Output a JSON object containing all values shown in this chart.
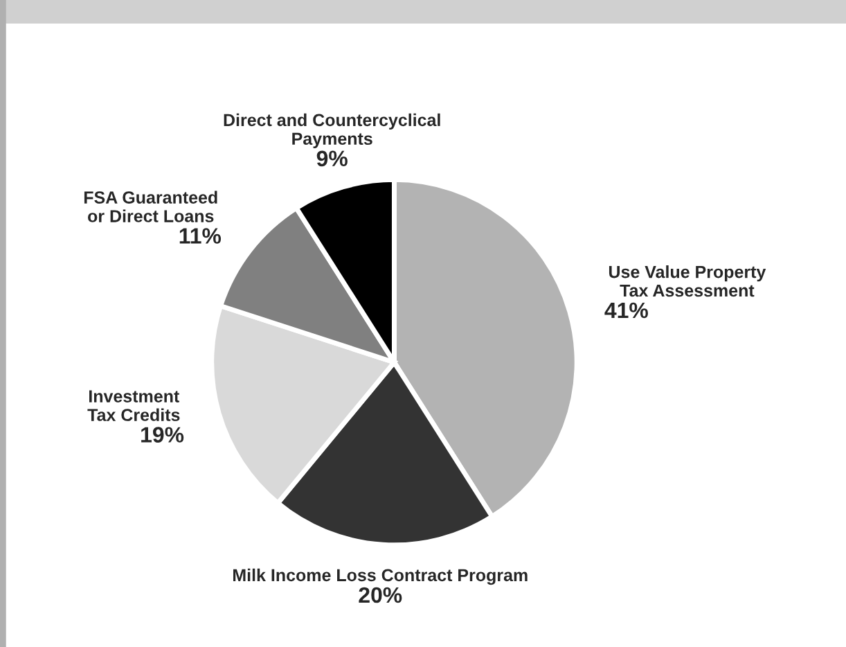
{
  "chart_data": {
    "type": "pie",
    "categories": [
      "Use Value Property\nTax Assessment",
      "Milk Income Loss Contract Program",
      "Investment\nTax Credits",
      "FSA Guaranteed\nor Direct Loans",
      "Direct and Countercyclical\nPayments"
    ],
    "values": [
      41,
      20,
      19,
      11,
      9
    ],
    "value_labels": [
      "41%",
      "20%",
      "19%",
      "11%",
      "9%"
    ],
    "colors": [
      "#b3b3b3",
      "#333333",
      "#d9d9d9",
      "#808080",
      "#000000"
    ]
  }
}
